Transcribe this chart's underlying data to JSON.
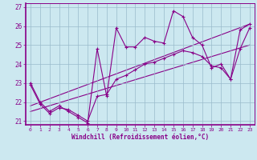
{
  "xlabel": "Windchill (Refroidissement éolien,°C)",
  "bg_color": "#cce8f0",
  "line_color": "#880088",
  "grid_color": "#99bbcc",
  "xlim": [
    -0.5,
    23.5
  ],
  "ylim": [
    20.8,
    27.2
  ],
  "yticks": [
    21,
    22,
    23,
    24,
    25,
    26,
    27
  ],
  "xticks": [
    0,
    1,
    2,
    3,
    4,
    5,
    6,
    7,
    8,
    9,
    10,
    11,
    12,
    13,
    14,
    15,
    16,
    17,
    18,
    19,
    20,
    21,
    22,
    23
  ],
  "series1_x": [
    0,
    1,
    2,
    3,
    4,
    5,
    6,
    7,
    8,
    9,
    10,
    11,
    12,
    13,
    14,
    15,
    16,
    17,
    18,
    19,
    20,
    21,
    22,
    23
  ],
  "series1_y": [
    23.0,
    22.0,
    21.5,
    21.8,
    21.5,
    21.2,
    20.9,
    24.8,
    22.3,
    25.9,
    24.9,
    24.9,
    25.4,
    25.2,
    25.1,
    26.8,
    26.5,
    25.4,
    25.0,
    23.8,
    24.0,
    23.2,
    25.8,
    26.1
  ],
  "series2_x": [
    0,
    1,
    2,
    3,
    4,
    5,
    6,
    7,
    8,
    9,
    10,
    11,
    12,
    13,
    14,
    15,
    16,
    17,
    18,
    19,
    20,
    21,
    22,
    23
  ],
  "series2_y": [
    22.9,
    21.9,
    21.4,
    21.7,
    21.6,
    21.3,
    21.0,
    22.3,
    22.4,
    23.2,
    23.4,
    23.7,
    24.0,
    24.1,
    24.3,
    24.5,
    24.7,
    24.6,
    24.4,
    23.9,
    23.8,
    23.2,
    24.8,
    25.9
  ],
  "trend1_x": [
    0,
    23
  ],
  "trend1_y": [
    21.5,
    25.0
  ],
  "trend2_x": [
    0,
    23
  ],
  "trend2_y": [
    21.8,
    26.1
  ]
}
